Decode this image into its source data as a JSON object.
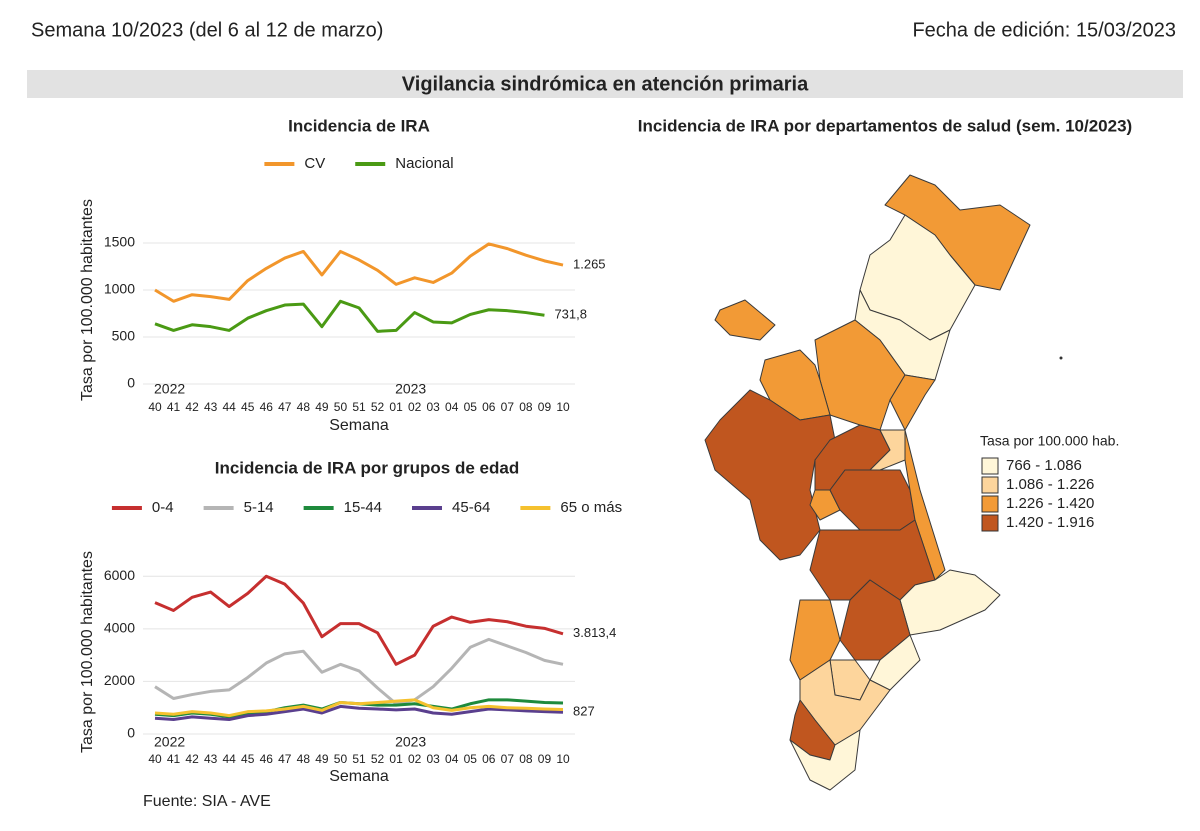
{
  "header": {
    "week": "Semana 10/2023 (del 6 al 12 de marzo)",
    "edition": "Fecha de edición: 15/03/2023"
  },
  "section_title": "Vigilancia sindrómica en atención primaria",
  "chart_data": [
    {
      "type": "line",
      "title": "Incidencia de IRA",
      "ylabel": "Tasa por 100.000 habitantes",
      "xlabel": "Semana",
      "categories": [
        "40",
        "41",
        "42",
        "43",
        "44",
        "45",
        "46",
        "47",
        "48",
        "49",
        "50",
        "51",
        "52",
        "01",
        "02",
        "03",
        "04",
        "05",
        "06",
        "07",
        "08",
        "09",
        "10"
      ],
      "year_labels": [
        "2022",
        null,
        null,
        null,
        null,
        null,
        null,
        null,
        null,
        null,
        null,
        null,
        null,
        "2023",
        null,
        null,
        null,
        null,
        null,
        null,
        null,
        null,
        null
      ],
      "ylim": [
        0,
        2000
      ],
      "yticks": [
        0,
        500,
        1000,
        1500
      ],
      "grid": true,
      "series": [
        {
          "name": "CV",
          "color": "#f2962b",
          "values": [
            1000,
            880,
            950,
            930,
            900,
            1100,
            1230,
            1340,
            1410,
            1160,
            1410,
            1320,
            1210,
            1060,
            1130,
            1080,
            1180,
            1360,
            1490,
            1440,
            1370,
            1310,
            1265
          ],
          "value_labels": [
            null,
            null,
            null,
            null,
            null,
            null,
            null,
            null,
            null,
            null,
            null,
            null,
            null,
            null,
            null,
            null,
            null,
            null,
            null,
            null,
            null,
            null,
            "1.265"
          ]
        },
        {
          "name": "Nacional",
          "color": "#4a9a14",
          "values": [
            640,
            570,
            630,
            610,
            570,
            700,
            780,
            840,
            850,
            610,
            880,
            810,
            560,
            570,
            760,
            660,
            650,
            740,
            790,
            780,
            760,
            731.8,
            null
          ],
          "value_labels": [
            null,
            null,
            null,
            null,
            null,
            null,
            null,
            null,
            null,
            null,
            null,
            null,
            null,
            null,
            null,
            null,
            null,
            null,
            null,
            null,
            null,
            "731,8",
            null
          ]
        }
      ]
    },
    {
      "type": "line",
      "title": "Incidencia de IRA por grupos de edad",
      "ylabel": "Tasa por 100.000 habitantes",
      "xlabel": "Semana",
      "categories": [
        "40",
        "41",
        "42",
        "43",
        "44",
        "45",
        "46",
        "47",
        "48",
        "49",
        "50",
        "51",
        "52",
        "01",
        "02",
        "03",
        "04",
        "05",
        "06",
        "07",
        "08",
        "09",
        "10"
      ],
      "year_labels": [
        "2022",
        null,
        null,
        null,
        null,
        null,
        null,
        null,
        null,
        null,
        null,
        null,
        null,
        "2023",
        null,
        null,
        null,
        null,
        null,
        null,
        null,
        null,
        null
      ],
      "ylim": [
        0,
        7000
      ],
      "yticks": [
        0,
        2000,
        4000,
        6000
      ],
      "grid": true,
      "series": [
        {
          "name": "0-4",
          "color": "#c62f2f",
          "values": [
            5000,
            4700,
            5200,
            5400,
            4850,
            5350,
            6000,
            5700,
            4980,
            3700,
            4200,
            4200,
            3850,
            2650,
            3000,
            4100,
            4450,
            4250,
            4350,
            4270,
            4100,
            4020,
            3813.4
          ],
          "value_labels": [
            null,
            null,
            null,
            null,
            null,
            null,
            null,
            null,
            null,
            null,
            null,
            null,
            null,
            null,
            null,
            null,
            null,
            null,
            null,
            null,
            null,
            null,
            "3.813,4"
          ]
        },
        {
          "name": "5-14",
          "color": "#b5b5b5",
          "values": [
            1800,
            1350,
            1500,
            1620,
            1680,
            2150,
            2700,
            3050,
            3150,
            2350,
            2650,
            2400,
            1750,
            1150,
            1300,
            1800,
            2500,
            3300,
            3600,
            3350,
            3100,
            2800,
            2650
          ]
        },
        {
          "name": "15-44",
          "color": "#1e8a3c",
          "values": [
            750,
            700,
            800,
            750,
            650,
            800,
            850,
            1000,
            1100,
            950,
            1200,
            1150,
            1100,
            1100,
            1150,
            1050,
            950,
            1150,
            1300,
            1300,
            1250,
            1200,
            1180
          ]
        },
        {
          "name": "45-64",
          "color": "#5a3f8e",
          "values": [
            600,
            550,
            650,
            600,
            550,
            700,
            750,
            850,
            950,
            800,
            1050,
            980,
            950,
            920,
            950,
            800,
            750,
            850,
            950,
            920,
            880,
            850,
            827
          ],
          "value_labels": [
            null,
            null,
            null,
            null,
            null,
            null,
            null,
            null,
            null,
            null,
            null,
            null,
            null,
            null,
            null,
            null,
            null,
            null,
            null,
            null,
            null,
            null,
            "827"
          ]
        },
        {
          "name": "65 o más",
          "color": "#f5c12e",
          "values": [
            800,
            750,
            850,
            800,
            700,
            850,
            880,
            950,
            1050,
            900,
            1200,
            1150,
            1200,
            1250,
            1300,
            1000,
            900,
            1000,
            1050,
            1000,
            980,
            950,
            930
          ]
        }
      ]
    },
    {
      "type": "choropleth",
      "title": "Incidencia de IRA por departamentos de salud (sem. 10/2023)",
      "legend_title": "Tasa por 100.000 hab.",
      "classes": [
        {
          "label": "766 - 1.086",
          "color": "#fff6d8"
        },
        {
          "label": "1.086 - 1.226",
          "color": "#fdd59c"
        },
        {
          "label": "1.226 - 1.420",
          "color": "#f29a36"
        },
        {
          "label": "1.420 - 1.916",
          "color": "#c0561f"
        }
      ]
    }
  ],
  "source": "Fuente: SIA - AVE"
}
